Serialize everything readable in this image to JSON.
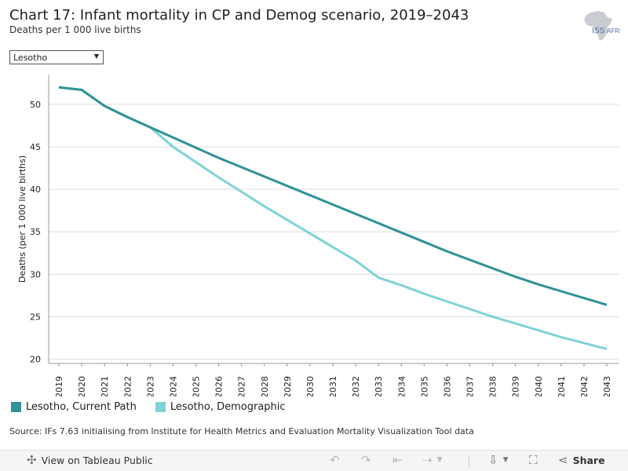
{
  "header": {
    "title": "Chart 17: Infant mortality in CP and Demog scenario, 2019–2043",
    "subtitle": "Deaths per 1 000 live births"
  },
  "logo": {
    "text": "ISS",
    "suffix": "AFRICA",
    "icon": "africa-map-icon"
  },
  "filter": {
    "selected": "Lesotho"
  },
  "source": "Source: IFs 7.63 initialising from Institute for Health Metrics and Evaluation Mortality Visualization Tool data",
  "toolbar": {
    "view_label": "View on Tableau Public",
    "share_label": "Share",
    "icons": [
      "tableau-logo-icon",
      "undo-icon",
      "redo-icon",
      "revert-icon",
      "refresh-icon",
      "download-icon",
      "fullscreen-icon",
      "share-icon"
    ]
  },
  "colors": {
    "current_path": "#2e9297",
    "demographic": "#7fd3d7",
    "grid": "#dddddd"
  },
  "chart_data": {
    "type": "line",
    "title": "Chart 17: Infant mortality in CP and Demog scenario, 2019–2043",
    "ylabel": "Deaths (per 1 000 live births)",
    "xlabel": "",
    "ylim": [
      19.5,
      53.5
    ],
    "yticks": [
      20,
      25,
      30,
      35,
      40,
      45,
      50
    ],
    "grid": true,
    "legend_position": "bottom-left",
    "x": [
      "2019",
      "2020",
      "2021",
      "2022",
      "2023",
      "2024",
      "2025",
      "2026",
      "2027",
      "2028",
      "2029",
      "2030",
      "2031",
      "2032",
      "2033",
      "2034",
      "2035",
      "2036",
      "2037",
      "2038",
      "2039",
      "2040",
      "2041",
      "2042",
      "2043"
    ],
    "series": [
      {
        "name": "Lesotho, Current Path",
        "color": "#2e9297",
        "values": [
          52.0,
          51.7,
          49.8,
          48.5,
          47.3,
          46.1,
          44.9,
          43.7,
          42.6,
          41.5,
          40.4,
          39.3,
          38.2,
          37.1,
          36.0,
          34.9,
          33.8,
          32.7,
          31.7,
          30.7,
          29.7,
          28.8,
          28.0,
          27.2,
          26.4
        ]
      },
      {
        "name": "Lesotho, Demographic",
        "color": "#7fd3d7",
        "values": [
          52.0,
          51.7,
          49.8,
          48.5,
          47.3,
          45.0,
          43.2,
          41.4,
          39.7,
          38.0,
          36.4,
          34.8,
          33.2,
          31.6,
          29.6,
          28.7,
          27.7,
          26.8,
          25.9,
          25.0,
          24.2,
          23.4,
          22.6,
          21.9,
          21.2
        ]
      }
    ]
  }
}
